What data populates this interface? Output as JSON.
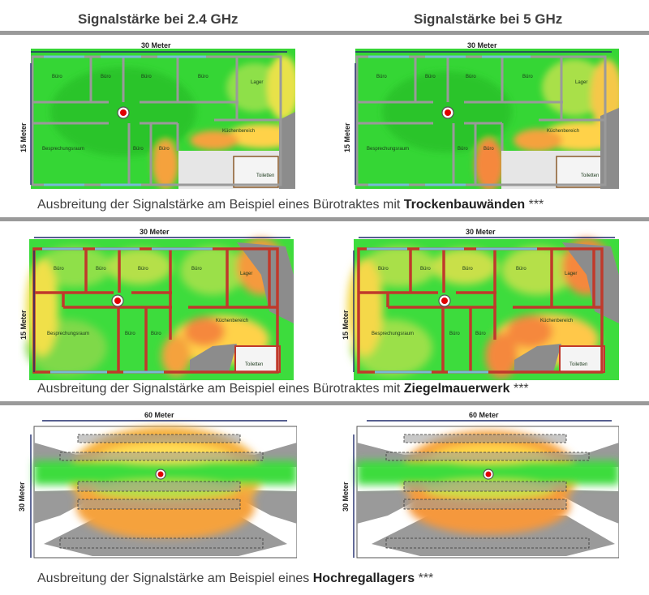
{
  "columns": {
    "left_title": "Signalstärke bei 2.4 GHz",
    "right_title": "Signalstärke bei 5 GHz"
  },
  "colors": {
    "divider": "#9a9a9a",
    "strong_signal": "#3ddc3d",
    "medium_signal": "#ffd24a",
    "weak_signal": "#f59a3c",
    "no_signal": "#8c8c8c",
    "drywall": "#9a9a9a",
    "brick": "#c0392b",
    "access_point": "#e00000",
    "dimension_line": "#1f2a6b"
  },
  "rows": [
    {
      "id": "drywall",
      "width_label": "30 Meter",
      "height_label": "15 Meter",
      "rooms": [
        "Büro",
        "Büro",
        "Büro",
        "Büro",
        "Lager",
        "Küchenbereich",
        "Besprechungsraum",
        "Büro",
        "Büro",
        "Toiletten"
      ],
      "caption_prefix": "Ausbreitung der Signalstärke am Beispiel eines Bürotraktes mit ",
      "caption_bold": "Trockenbauwänden",
      "caption_suffix": " ***"
    },
    {
      "id": "brick",
      "width_label": "30 Meter",
      "height_label": "15 Meter",
      "rooms": [
        "Büro",
        "Büro",
        "Büro",
        "Büro",
        "Lager",
        "Küchenbereich",
        "Besprechungsraum",
        "Büro",
        "Büro",
        "Toiletten"
      ],
      "caption_prefix": "Ausbreitung der Signalstärke am Beispiel eines Bürotraktes mit ",
      "caption_bold": "Ziegelmauerwerk",
      "caption_suffix": " ***"
    },
    {
      "id": "warehouse",
      "width_label": "60 Meter",
      "height_label": "30 Meter",
      "rooms": [],
      "caption_prefix": "Ausbreitung der Signalstärke am Beispiel eines ",
      "caption_bold": "Hochregallagers",
      "caption_suffix": " ***"
    }
  ]
}
